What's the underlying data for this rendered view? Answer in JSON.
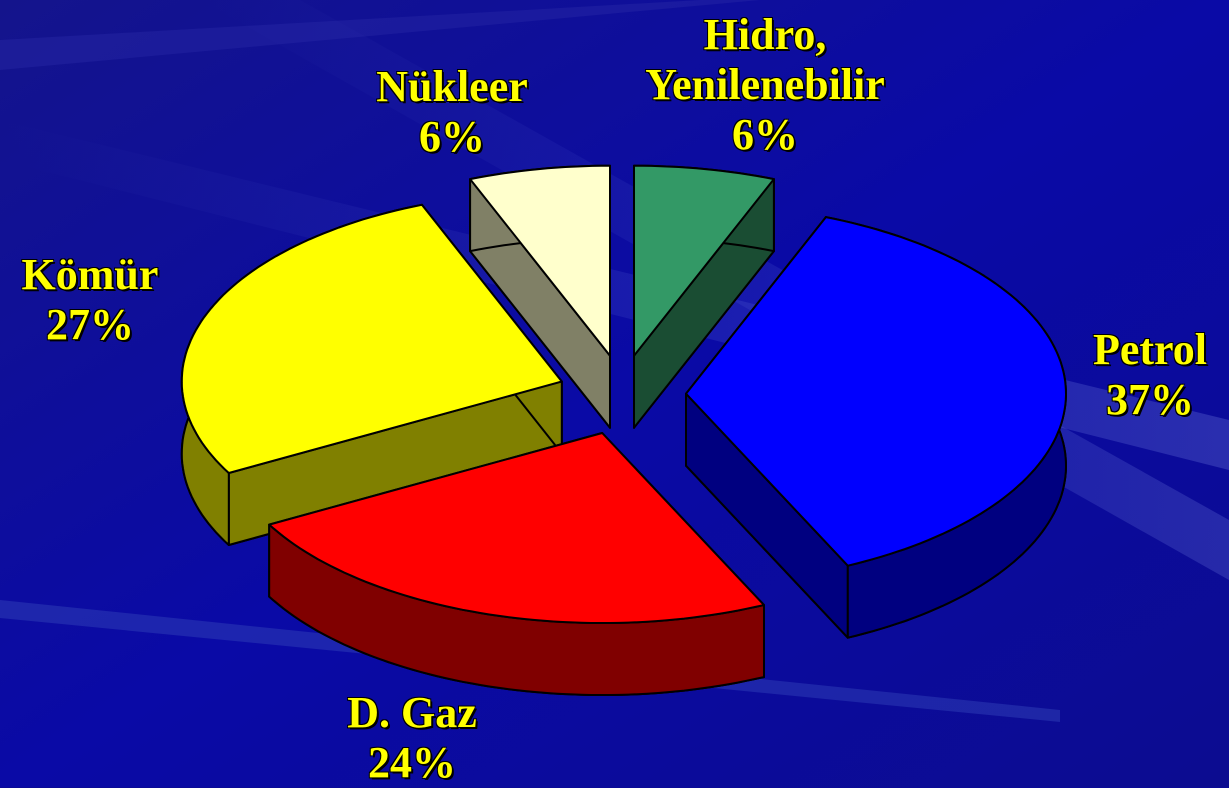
{
  "chart_data": {
    "type": "pie",
    "categories": [
      "Hidro, Yenilenebilir",
      "Petrol",
      "D. Gaz",
      "Kömür",
      "Nükleer"
    ],
    "values": [
      6,
      37,
      24,
      27,
      6
    ],
    "value_labels": [
      "6%",
      "37%",
      "24%",
      "27%",
      "6%"
    ],
    "colors": [
      "#339966",
      "#0000ff",
      "#ff0000",
      "#ffff00",
      "#ffffcc"
    ],
    "three_d": true,
    "exploded": true
  }
}
